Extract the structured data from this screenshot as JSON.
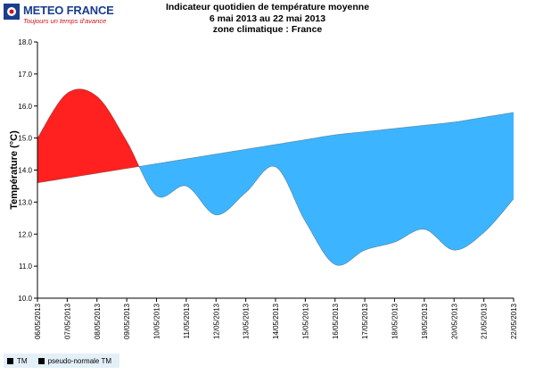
{
  "header": {
    "logo_name": "METEO FRANCE",
    "logo_tagline": "Toujours un temps d'avance"
  },
  "chart_data": {
    "type": "area",
    "title": "Indicateur quotidien de température moyenne",
    "subtitle": "6 mai 2013 au 22 mai 2013",
    "subtitle2": "zone climatique : France",
    "ylabel": "Température (°C)",
    "xlabel": "",
    "ylim": [
      10.0,
      18.0
    ],
    "yticks": [
      "10.0",
      "11.0",
      "12.0",
      "13.0",
      "14.0",
      "15.0",
      "16.0",
      "17.0",
      "18.0"
    ],
    "categories": [
      "06/05/2013",
      "07/05/2013",
      "08/05/2013",
      "09/05/2013",
      "10/05/2013",
      "11/05/2013",
      "12/05/2013",
      "13/05/2013",
      "14/05/2013",
      "15/05/2013",
      "16/05/2013",
      "17/05/2013",
      "18/05/2013",
      "19/05/2013",
      "20/05/2013",
      "21/05/2013",
      "22/05/2013"
    ],
    "series": [
      {
        "name": "TM",
        "values": [
          15.0,
          16.4,
          16.3,
          14.9,
          13.2,
          13.5,
          12.6,
          13.3,
          14.1,
          12.4,
          11.05,
          11.5,
          11.75,
          12.15,
          11.5,
          12.05,
          13.1
        ]
      },
      {
        "name": "pseudo-normale TM",
        "values": [
          13.6,
          13.75,
          13.9,
          14.05,
          14.2,
          14.35,
          14.5,
          14.65,
          14.8,
          14.95,
          15.1,
          15.2,
          15.3,
          15.4,
          15.5,
          15.65,
          15.8
        ]
      }
    ],
    "colors": {
      "above": "#ff2020",
      "below": "#3db4ff",
      "axis": "#000000",
      "legend_bg": "#e4f0f8"
    },
    "grid": false,
    "legend_position": "bottom-left"
  }
}
